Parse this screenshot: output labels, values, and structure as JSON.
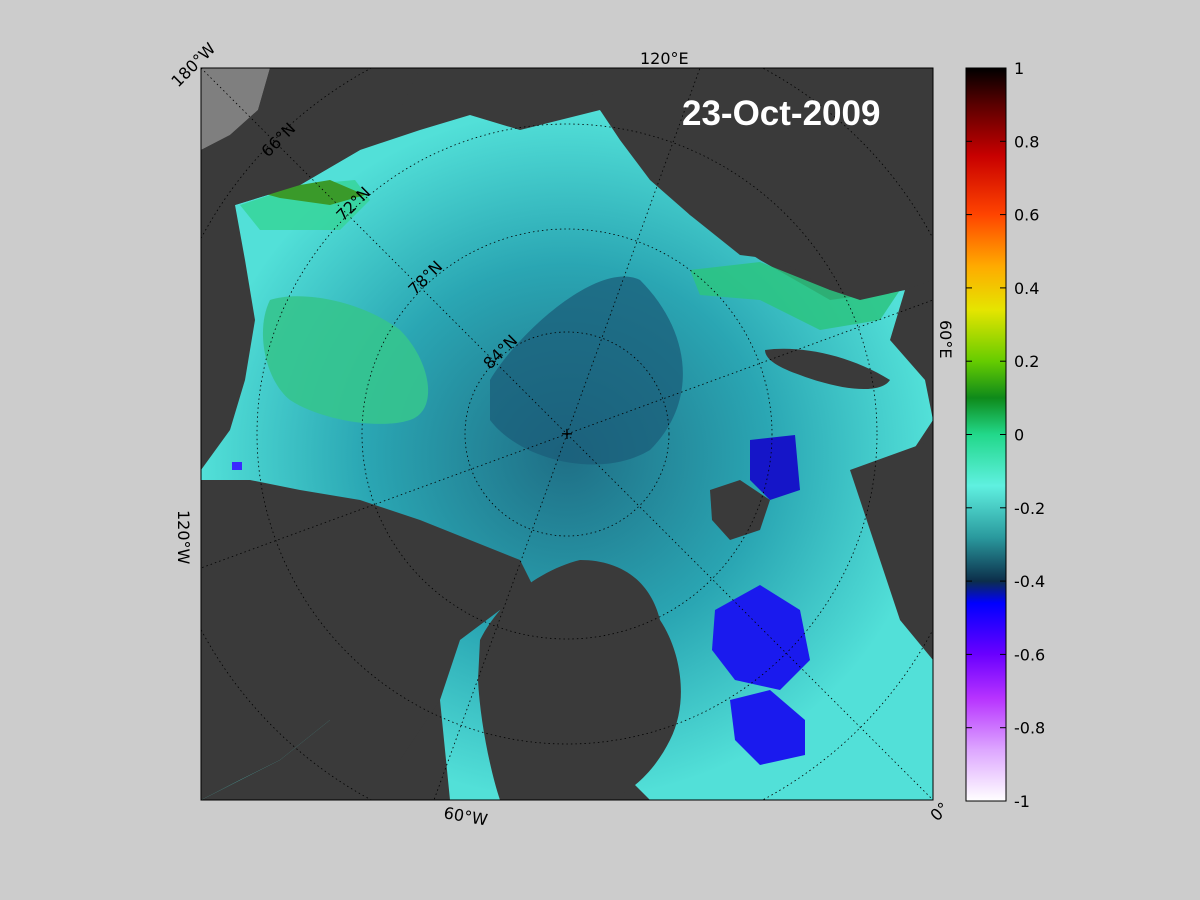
{
  "date_label": "23-Oct-2009",
  "map": {
    "projection": "north-polar-stereographic",
    "center_pole_marker": "+",
    "longitude_labels": [
      "180°W",
      "120°E",
      "60°E",
      "0°",
      "60°W",
      "120°W"
    ],
    "latitude_labels": [
      "66°N",
      "72°N",
      "78°N",
      "84°N"
    ],
    "colors": {
      "land": "#3a3a3a",
      "outer_land": "#7f7f7f",
      "figure_background": "#cccccc",
      "grid_lines": "#000000"
    }
  },
  "colorbar": {
    "min": -1,
    "max": 1,
    "tick_labels": [
      "1",
      "0.8",
      "0.6",
      "0.4",
      "0.2",
      "0",
      "-0.2",
      "-0.4",
      "-0.6",
      "-0.8",
      "-1"
    ],
    "tick_values": [
      1,
      0.8,
      0.6,
      0.4,
      0.2,
      0,
      -0.2,
      -0.4,
      -0.6,
      -0.8,
      -1
    ]
  }
}
